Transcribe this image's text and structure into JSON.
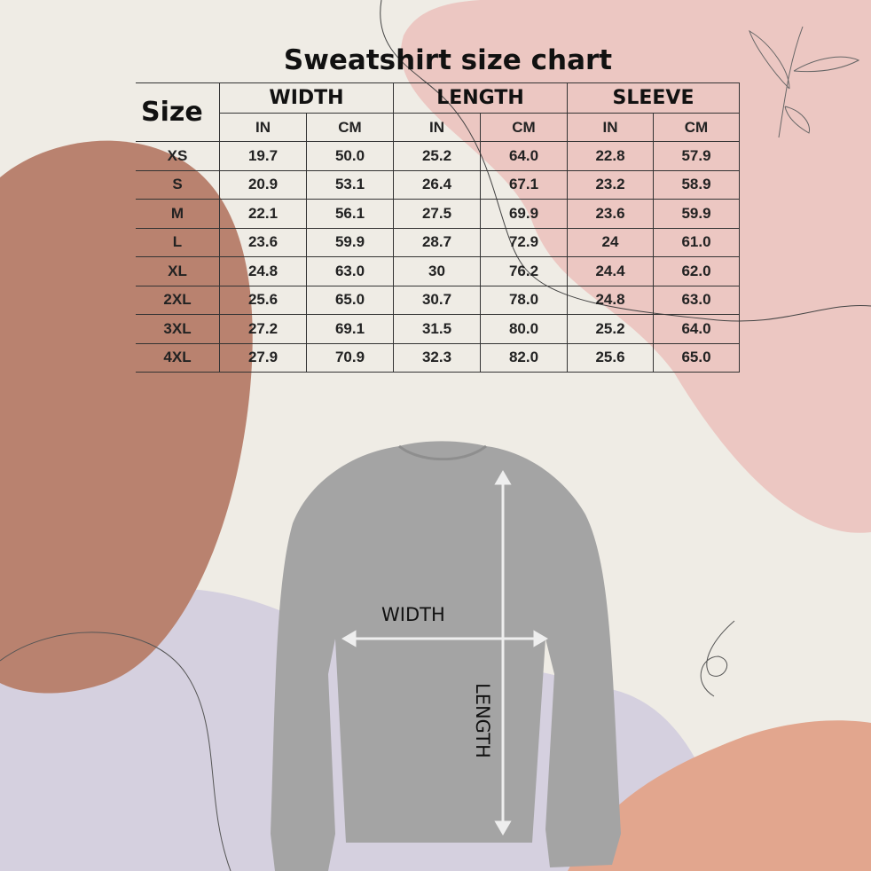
{
  "title": "Sweatshirt size chart",
  "table": {
    "size_header": "Size",
    "groups": [
      "WIDTH",
      "LENGTH",
      "SLEEVE"
    ],
    "units": [
      "IN",
      "CM",
      "IN",
      "CM",
      "IN",
      "CM"
    ],
    "rows": [
      [
        "XS",
        "19.7",
        "50.0",
        "25.2",
        "64.0",
        "22.8",
        "57.9"
      ],
      [
        "S",
        "20.9",
        "53.1",
        "26.4",
        "67.1",
        "23.2",
        "58.9"
      ],
      [
        "M",
        "22.1",
        "56.1",
        "27.5",
        "69.9",
        "23.6",
        "59.9"
      ],
      [
        "L",
        "23.6",
        "59.9",
        "28.7",
        "72.9",
        "24",
        "61.0"
      ],
      [
        "XL",
        "24.8",
        "63.0",
        "30",
        "76.2",
        "24.4",
        "62.0"
      ],
      [
        "2XL",
        "25.6",
        "65.0",
        "30.7",
        "78.0",
        "24.8",
        "63.0"
      ],
      [
        "3XL",
        "27.2",
        "69.1",
        "31.5",
        "80.0",
        "25.2",
        "64.0"
      ],
      [
        "4XL",
        "27.9",
        "70.9",
        "32.3",
        "82.0",
        "25.6",
        "65.0"
      ]
    ]
  },
  "diagram": {
    "width_label": "WIDTH",
    "length_label": "LENGTH"
  },
  "colors": {
    "background": "#efece5",
    "brown_blob": "#b9826f",
    "pink_blob": "#ecc7c2",
    "lavender_blob": "#d5d0df",
    "salmon_blob": "#e2a68e",
    "sweatshirt": "#a4a4a4"
  }
}
